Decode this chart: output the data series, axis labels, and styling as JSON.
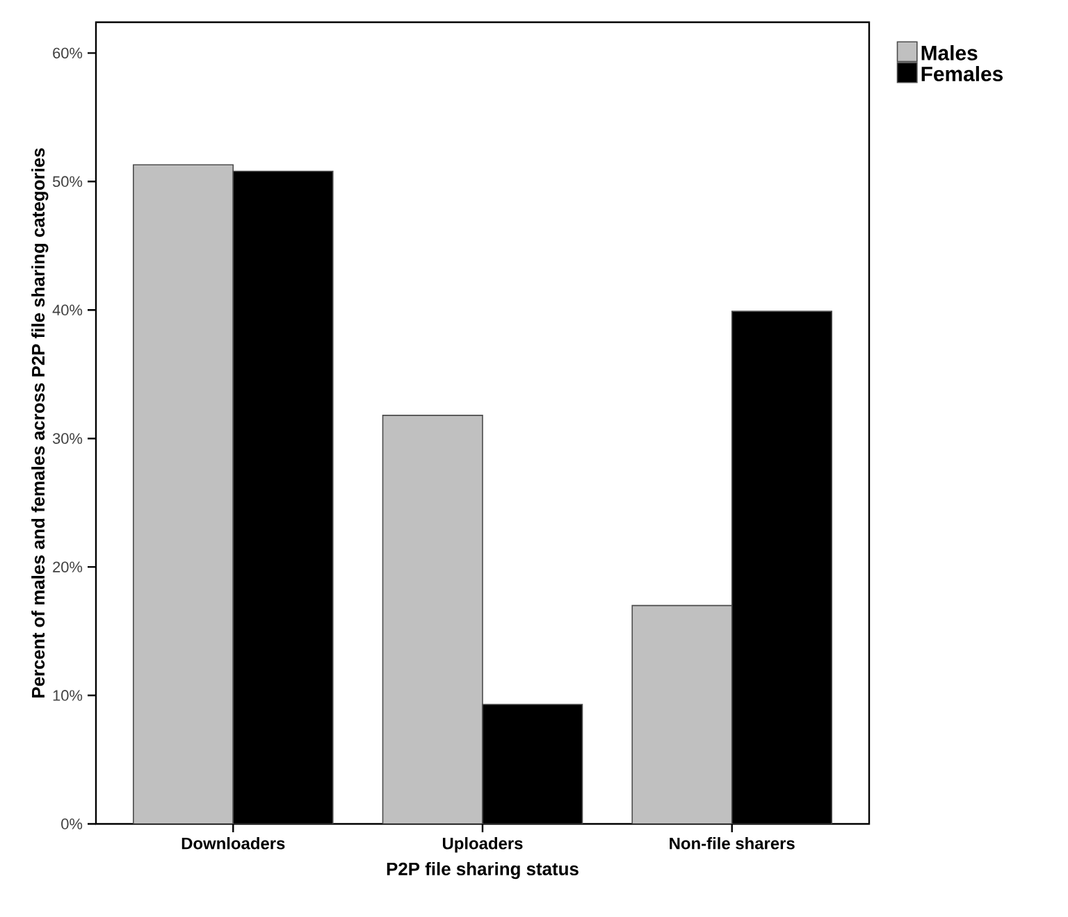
{
  "chart_data": {
    "type": "bar",
    "xlabel": "P2P file sharing status",
    "ylabel": "Percent of males and females across P2P file sharing categories",
    "categories": [
      "Downloaders",
      "Uploaders",
      "Non-file sharers"
    ],
    "series": [
      {
        "name": "Males",
        "color": "#c0c0c0",
        "values": [
          51.3,
          31.8,
          17.0
        ]
      },
      {
        "name": "Females",
        "color": "#000000",
        "values": [
          50.8,
          9.3,
          39.9
        ]
      }
    ],
    "ylim": [
      0,
      62.4
    ],
    "yticks": [
      {
        "value": 0,
        "label": "0%"
      },
      {
        "value": 10,
        "label": "10%"
      },
      {
        "value": 20,
        "label": "20%"
      },
      {
        "value": 30,
        "label": "30%"
      },
      {
        "value": 40,
        "label": "40%"
      },
      {
        "value": 50,
        "label": "50%"
      },
      {
        "value": 60,
        "label": "60%"
      }
    ],
    "grid": false,
    "legend": "top right"
  }
}
